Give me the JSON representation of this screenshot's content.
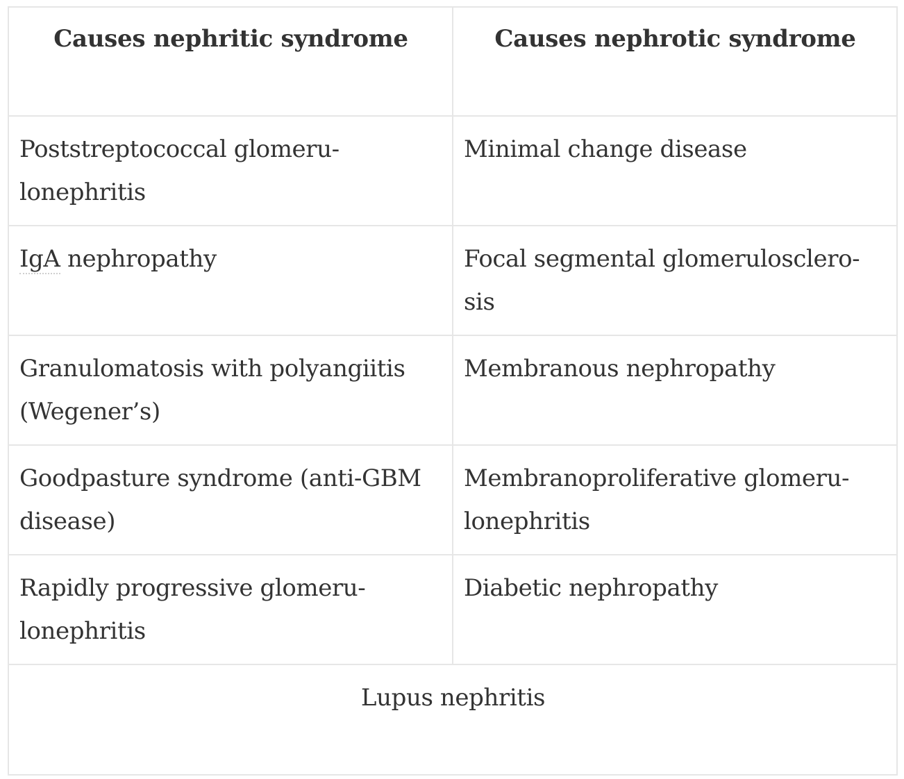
{
  "table": {
    "headers": [
      "Causes nephritic syndrome",
      "Causes nephrotic syndrome"
    ],
    "rows": [
      [
        "Poststreptococcal glomeru-lonephritis",
        "Minimal change disease"
      ],
      [
        "IgA nephropathy",
        "Focal segmental glomerulosclero-sis"
      ],
      [
        "Granulomatosis with polyangiitis (Wegener’s)",
        "Membranous nephropathy"
      ],
      [
        "Goodpasture syndrome (anti-GBM disease)",
        "Membranoproliferative glomeru-lonephritis"
      ],
      [
        "Rapidly progressive glomeru-lonephritis",
        "Diabetic nephropathy"
      ]
    ],
    "footer": "Lupus nephritis",
    "abbr": "IgA",
    "row2_rest": " nephropathy"
  }
}
